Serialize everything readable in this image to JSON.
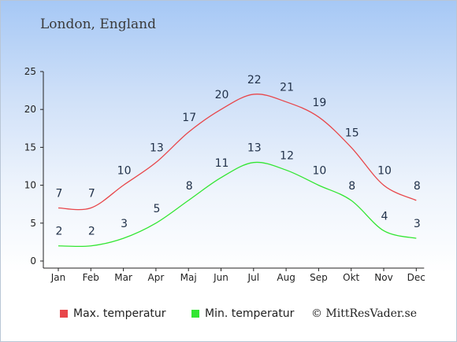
{
  "location": "London, England",
  "copyright": "© MittResVader.se",
  "colors": {
    "max": "#e8464a",
    "min": "#32e632",
    "axis": "#222222"
  },
  "chart_data": {
    "type": "line",
    "title": "London, England",
    "categories": [
      "Jan",
      "Feb",
      "Mar",
      "Apr",
      "Maj",
      "Jun",
      "Jul",
      "Aug",
      "Sep",
      "Okt",
      "Nov",
      "Dec"
    ],
    "ylim": [
      0,
      25
    ],
    "yticks": [
      0,
      5,
      10,
      15,
      20,
      25
    ],
    "grid": false,
    "legend": "bottom",
    "series": [
      {
        "name": "Max. temperatur",
        "color": "#e8464a",
        "values": [
          7,
          7,
          10,
          13,
          17,
          20,
          22,
          21,
          19,
          15,
          10,
          8
        ]
      },
      {
        "name": "Min. temperatur",
        "color": "#32e632",
        "values": [
          2,
          2,
          3,
          5,
          8,
          11,
          13,
          12,
          10,
          8,
          4,
          3
        ]
      }
    ]
  }
}
